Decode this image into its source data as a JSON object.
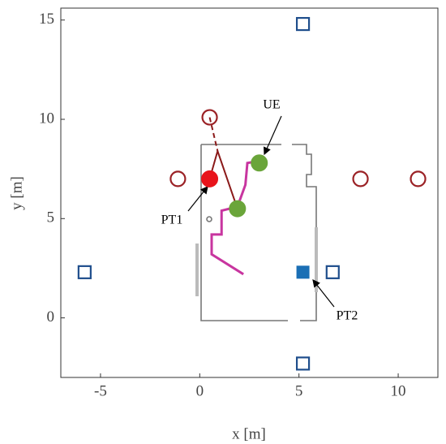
{
  "chart_data": {
    "type": "scatter",
    "xlabel": "x [m]",
    "ylabel": "y [m]",
    "xlim": [
      -7,
      12
    ],
    "ylim": [
      -3,
      15.6
    ],
    "xticks": [
      -5,
      0,
      5,
      10
    ],
    "yticks": [
      0,
      5,
      10,
      15
    ],
    "annotations": [
      "UE",
      "PT1",
      "PT2"
    ],
    "series": [
      {
        "color": "#c8359f",
        "line": "solid",
        "marker": "none",
        "x": [
          2.2,
          0.6,
          0.6,
          1.1,
          1.1,
          1.9,
          2.3,
          2.4,
          3.0
        ],
        "values": [
          2.2,
          3.2,
          4.2,
          4.2,
          5.4,
          5.6,
          6.7,
          7.8,
          7.9
        ]
      },
      {
        "color": "#8b1a1a",
        "line": "dashed",
        "marker": "none",
        "x": [
          0.5,
          0.9
        ],
        "values": [
          10.1,
          8.4
        ]
      },
      {
        "color": "#8b1a1a",
        "line": "solid",
        "marker": "none",
        "x": [
          0.5,
          0.9,
          1.9
        ],
        "values": [
          7.0,
          8.4,
          5.5
        ]
      },
      {
        "color": "#1f4e8c",
        "line": "none",
        "marker": "square",
        "filled": false,
        "x": [
          5.2,
          -5.8,
          6.7,
          5.2
        ],
        "values": [
          14.8,
          2.3,
          2.3,
          -2.3
        ]
      },
      {
        "color": "#1a6fb5",
        "line": "none",
        "marker": "square",
        "filled": true,
        "x": [
          5.2
        ],
        "values": [
          2.3
        ]
      },
      {
        "color": "#9b2226",
        "line": "none",
        "marker": "circle",
        "filled": false,
        "x": [
          0.5,
          -1.1,
          8.1,
          11.0
        ],
        "values": [
          10.1,
          7.0,
          7.0,
          7.0
        ]
      },
      {
        "color": "#e8141b",
        "line": "none",
        "marker": "circle",
        "filled": true,
        "x": [
          0.5
        ],
        "values": [
          7.0
        ]
      },
      {
        "color": "#6aa53a",
        "line": "none",
        "marker": "circle",
        "filled": true,
        "x": [
          1.9,
          3.0
        ],
        "values": [
          5.5,
          7.8
        ]
      }
    ]
  }
}
